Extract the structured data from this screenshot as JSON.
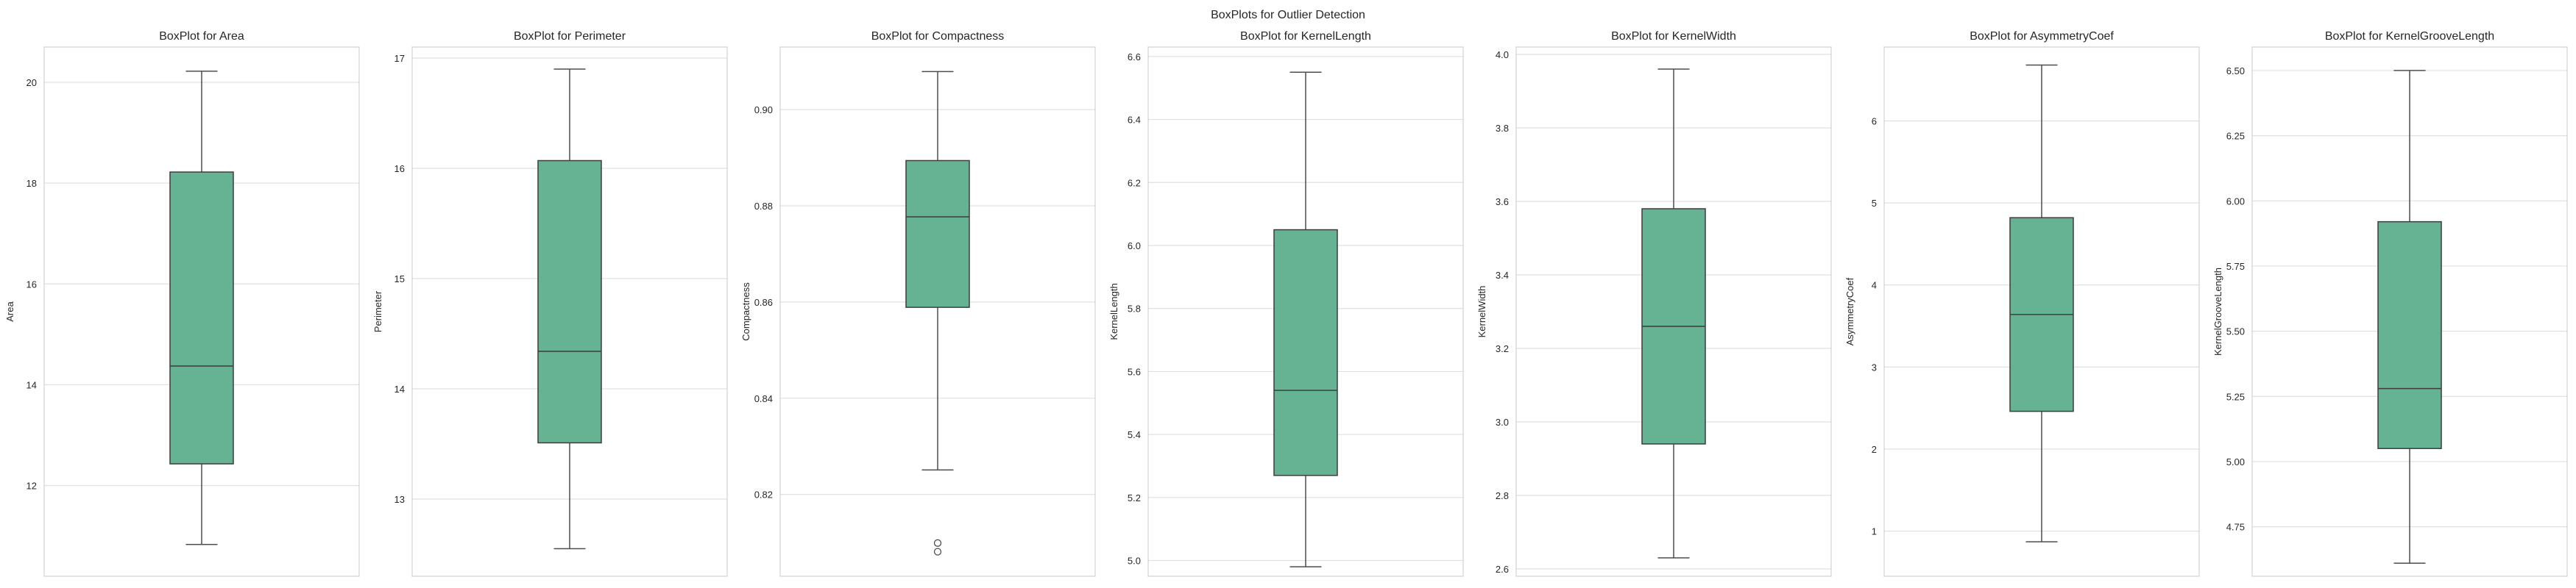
{
  "figure_title": "BoxPlots for Outlier Detection",
  "colors": {
    "box_fill": "#66b394",
    "box_edge": "#3d3d3d",
    "whisker": "#4d4d4d",
    "grid": "#e0e0e0",
    "frame": "#d0d0d0",
    "text": "#262626"
  },
  "chart_data": [
    {
      "type": "box",
      "title": "BoxPlot for Area",
      "ylabel": "Area",
      "ylim": [
        10.2,
        20.7
      ],
      "yticks": [
        12,
        14,
        16,
        18,
        20
      ],
      "tick_labels": [
        "12",
        "14",
        "16",
        "18",
        "20"
      ],
      "min": 10.83,
      "q1": 12.43,
      "median": 14.37,
      "q3": 18.22,
      "max": 20.22,
      "outliers": [],
      "grid": true
    },
    {
      "type": "box",
      "title": "BoxPlot for Perimeter",
      "ylabel": "Perimeter",
      "ylim": [
        12.3,
        17.1
      ],
      "yticks": [
        13,
        14,
        15,
        16,
        17
      ],
      "tick_labels": [
        "13",
        "14",
        "15",
        "16",
        "17"
      ],
      "min": 12.55,
      "q1": 13.51,
      "median": 14.34,
      "q3": 16.07,
      "max": 16.9,
      "outliers": [],
      "grid": true
    },
    {
      "type": "box",
      "title": "BoxPlot for Compactness",
      "ylabel": "Compactness",
      "ylim": [
        0.803,
        0.913
      ],
      "yticks": [
        0.82,
        0.84,
        0.86,
        0.88,
        0.9
      ],
      "tick_labels": [
        "0.82",
        "0.84",
        "0.86",
        "0.88",
        "0.90"
      ],
      "min": 0.8251,
      "q1": 0.8589,
      "median": 0.8777,
      "q3": 0.8894,
      "max": 0.9079,
      "outliers": [
        0.8081,
        0.8099
      ],
      "grid": true
    },
    {
      "type": "box",
      "title": "BoxPlot for KernelLength",
      "ylabel": "KernelLength",
      "ylim": [
        4.95,
        6.63
      ],
      "yticks": [
        5.0,
        5.2,
        5.4,
        5.6,
        5.8,
        6.0,
        6.2,
        6.4,
        6.6
      ],
      "tick_labels": [
        "5.0",
        "5.2",
        "5.4",
        "5.6",
        "5.8",
        "6.0",
        "6.2",
        "6.4",
        "6.6"
      ],
      "min": 4.98,
      "q1": 5.27,
      "median": 5.54,
      "q3": 6.05,
      "max": 6.55,
      "outliers": [],
      "grid": true
    },
    {
      "type": "box",
      "title": "BoxPlot for KernelWidth",
      "ylabel": "KernelWidth",
      "ylim": [
        2.58,
        4.02
      ],
      "yticks": [
        2.6,
        2.8,
        3.0,
        3.2,
        3.4,
        3.6,
        3.8,
        4.0
      ],
      "tick_labels": [
        "2.6",
        "2.8",
        "3.0",
        "3.2",
        "3.4",
        "3.6",
        "3.8",
        "4.0"
      ],
      "min": 2.63,
      "q1": 2.94,
      "median": 3.26,
      "q3": 3.58,
      "max": 3.96,
      "outliers": [],
      "grid": true
    },
    {
      "type": "box",
      "title": "BoxPlot for AsymmetryCoef",
      "ylabel": "AsymmetryCoef",
      "ylim": [
        0.45,
        6.9
      ],
      "yticks": [
        1,
        2,
        3,
        4,
        5,
        6
      ],
      "tick_labels": [
        "1",
        "2",
        "3",
        "4",
        "5",
        "6"
      ],
      "min": 0.87,
      "q1": 2.46,
      "median": 3.64,
      "q3": 4.82,
      "max": 6.68,
      "outliers": [],
      "grid": true
    },
    {
      "type": "box",
      "title": "BoxPlot for KernelGrooveLength",
      "ylabel": "KernelGrooveLength",
      "ylim": [
        4.56,
        6.59
      ],
      "yticks": [
        4.75,
        5.0,
        5.25,
        5.5,
        5.75,
        6.0,
        6.25,
        6.5
      ],
      "tick_labels": [
        "4.75",
        "5.00",
        "5.25",
        "5.50",
        "5.75",
        "6.00",
        "6.25",
        "6.50"
      ],
      "min": 4.61,
      "q1": 5.05,
      "median": 5.28,
      "q3": 5.92,
      "max": 6.5,
      "outliers": [],
      "grid": true
    }
  ]
}
